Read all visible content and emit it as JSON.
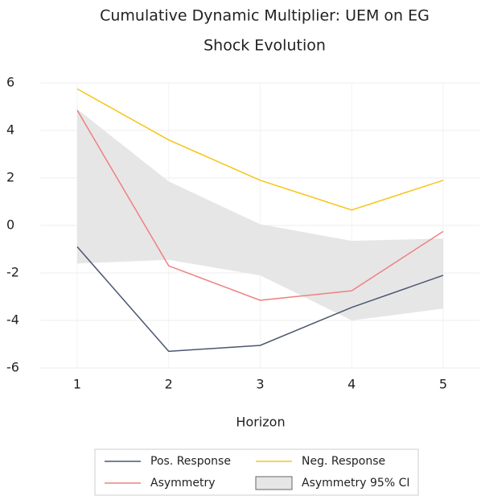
{
  "chart_data": {
    "type": "line",
    "title": "Cumulative Dynamic Multiplier: UEM on EG",
    "subtitle": "Shock Evolution",
    "x_label": "Horizon",
    "x": [
      1,
      2,
      3,
      4,
      5
    ],
    "xlim": [
      0.6,
      5.4
    ],
    "xticks": [
      1,
      2,
      3,
      4,
      5
    ],
    "ylim": [
      -6,
      6
    ],
    "yticks": [
      -6,
      -4,
      -2,
      0,
      2,
      4,
      6
    ],
    "grid": true,
    "legend": "bottom",
    "series": [
      {
        "name": "Pos. Response",
        "color": "#4a5670",
        "values": [
          -0.9,
          -5.3,
          -5.05,
          -3.45,
          -2.1
        ]
      },
      {
        "name": "Neg. Response",
        "color": "#f5c518",
        "values": [
          5.75,
          3.6,
          1.9,
          0.65,
          1.9
        ]
      },
      {
        "name": "Asymmetry",
        "color": "#f08080",
        "values": [
          4.85,
          -1.7,
          -3.15,
          -2.75,
          -0.25
        ]
      }
    ],
    "bands": [
      {
        "name": "Asymmetry 95% CI",
        "color": "#e6e6e6",
        "lower": [
          -1.6,
          -1.45,
          -2.1,
          -4.0,
          -3.5
        ],
        "upper": [
          4.9,
          1.85,
          0.05,
          -0.65,
          -0.55
        ]
      }
    ]
  }
}
